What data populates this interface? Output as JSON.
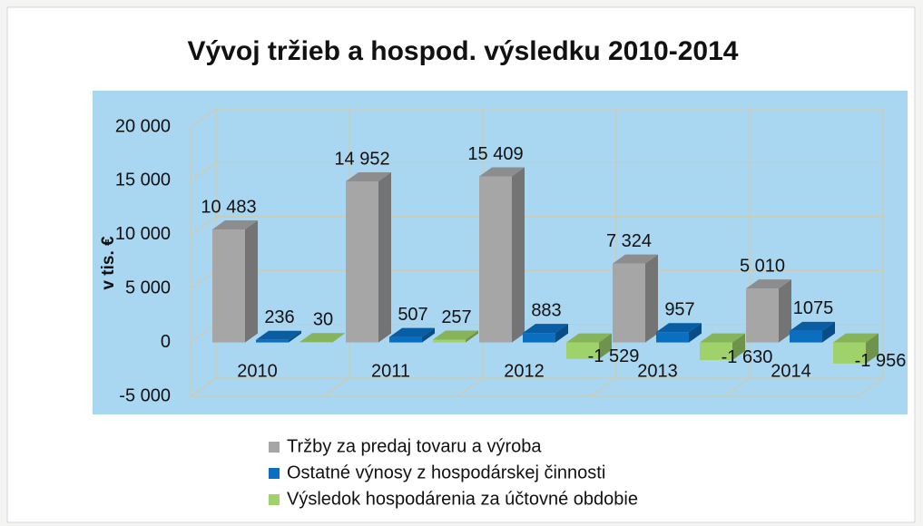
{
  "chart_data": {
    "type": "bar",
    "title": "Vývoj tržieb a hospod. výsledku 2010-2014",
    "ylabel": "v tis. €",
    "categories": [
      "2010",
      "2011",
      "2012",
      "2013",
      "2014"
    ],
    "series": [
      {
        "name": "Tržby za predaj tovaru a výroba",
        "color": "#a6a6a6",
        "values": [
          10483,
          14952,
          15409,
          7324,
          5010
        ],
        "value_labels": [
          "10 483",
          "14 952",
          "15 409",
          "7 324",
          "5 010"
        ]
      },
      {
        "name": "Ostatné výnosy z hospodárskej činnosti",
        "color": "#0a6fc0",
        "values": [
          236,
          507,
          883,
          957,
          1075
        ]
      },
      {
        "name": "Výsledok hospodárenia za účtovné obdobie",
        "color": "#9fd26a",
        "values": [
          30,
          257,
          -1529,
          -1630,
          -1956
        ],
        "value_labels": [
          "30",
          "257",
          "-1 529",
          "-1 630",
          "-1 956"
        ]
      }
    ],
    "ylim": [
      -5000,
      20000
    ],
    "yticks": [
      {
        "value": -5000,
        "label": "-5 000"
      },
      0,
      {
        "value": 5000,
        "label": "5 000"
      },
      {
        "value": 10000,
        "label": "10 000"
      },
      {
        "value": 15000,
        "label": "15 000"
      },
      {
        "value": 20000,
        "label": "20 000"
      }
    ],
    "grid": true
  }
}
